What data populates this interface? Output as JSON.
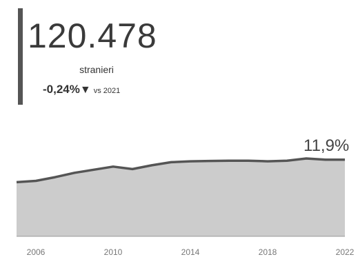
{
  "kpi": {
    "value": "120.478",
    "label": "stranieri",
    "change": "-0,24%",
    "change_arrow": "▼",
    "comparison": "vs 2021"
  },
  "colors": {
    "line": "#555555",
    "area": "#cccccc",
    "axis": "#999999",
    "text": "#333333"
  },
  "chart_data": {
    "type": "area",
    "x": [
      2005,
      2006,
      2007,
      2008,
      2009,
      2010,
      2011,
      2012,
      2013,
      2014,
      2015,
      2016,
      2017,
      2018,
      2019,
      2020,
      2021,
      2022
    ],
    "values": [
      8.7,
      8.9,
      9.5,
      10.2,
      10.7,
      11.2,
      10.8,
      11.4,
      11.9,
      12.05,
      12.1,
      12.15,
      12.15,
      12.05,
      12.15,
      12.5,
      12.3,
      12.3
    ],
    "xticks": [
      "2006",
      "2010",
      "2014",
      "2018",
      "2022"
    ],
    "ylim": [
      0,
      13
    ],
    "annotation": "11,9%",
    "grid": false
  }
}
